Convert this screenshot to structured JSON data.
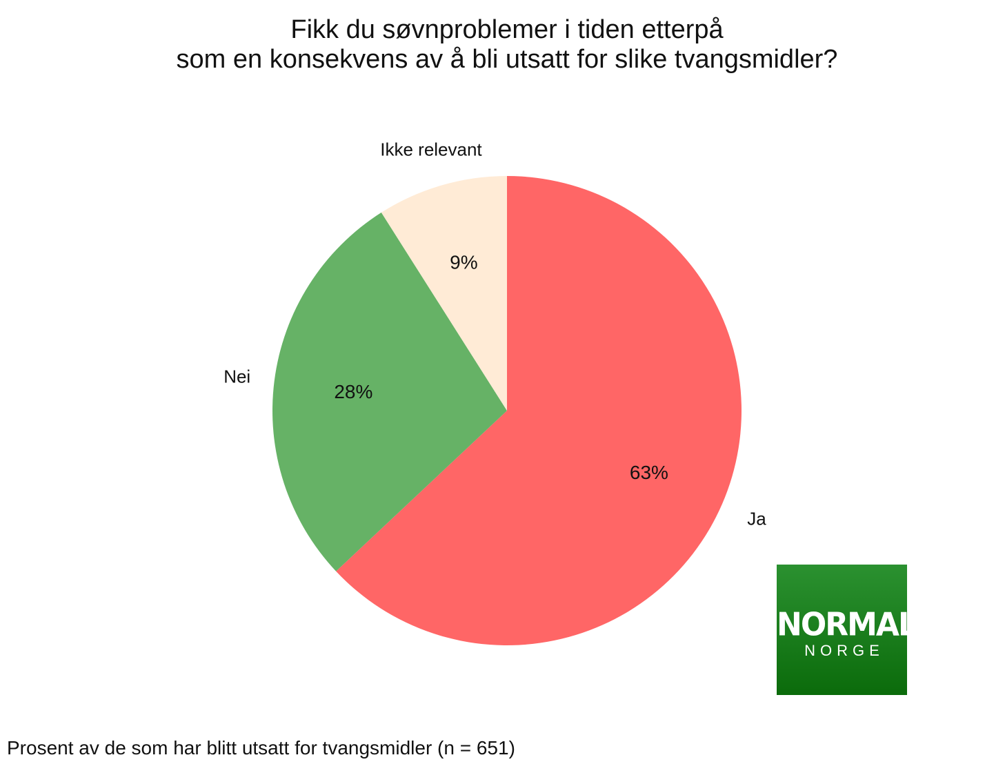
{
  "chart_data": {
    "type": "pie",
    "title": [
      "Fikk du søvnproblemer i tiden etterpå",
      "som en konsekvens av å bli utsatt for slike tvangsmidler?"
    ],
    "slices": [
      {
        "label": "Ja",
        "value": 63,
        "value_label": "63%",
        "color": "#FF6666"
      },
      {
        "label": "Nei",
        "value": 28,
        "value_label": "28%",
        "color": "#66B266"
      },
      {
        "label": "Ikke relevant",
        "value": 9,
        "value_label": "9%",
        "color": "#FFEBD6"
      }
    ],
    "start": "top",
    "direction": "clockwise",
    "caption": "Prosent av de som har blitt utsatt for tvangsmidler (n = 651)"
  },
  "logo": {
    "line1": "NORMAL",
    "line2": "NORGE",
    "color": "#1E7F1E"
  }
}
